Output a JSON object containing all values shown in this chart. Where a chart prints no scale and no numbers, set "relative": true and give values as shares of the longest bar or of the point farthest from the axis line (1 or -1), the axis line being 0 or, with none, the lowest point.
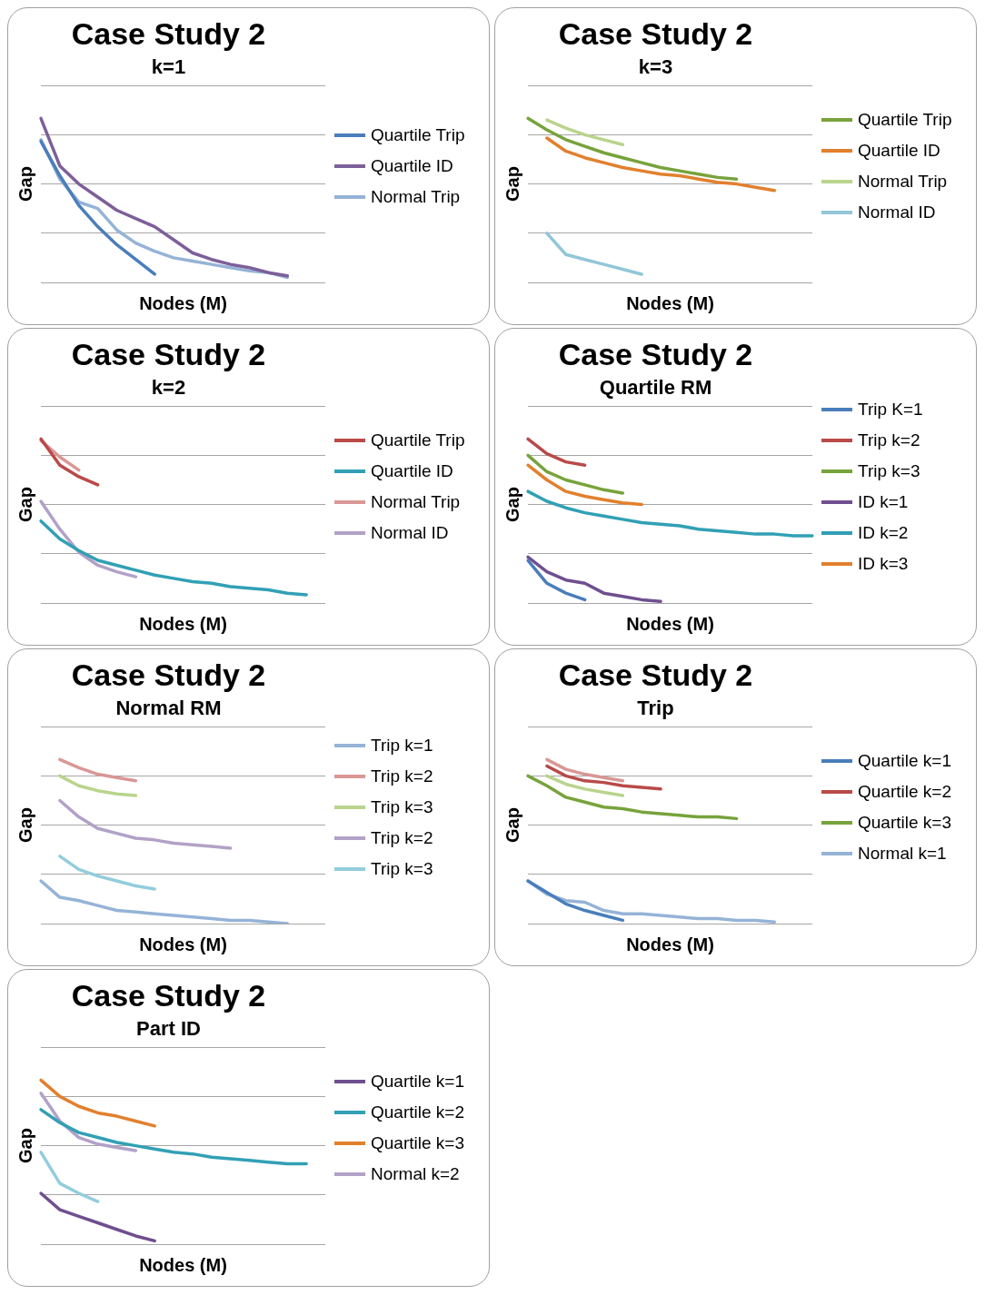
{
  "chart_data": [
    {
      "type": "line",
      "title": "Case Study 2",
      "subtitle": "k=1",
      "xlabel": "Nodes (M)",
      "ylabel": "Gap",
      "relative": true,
      "grid": "y",
      "legend": "right",
      "categories": [
        null,
        null,
        null,
        null,
        null,
        null,
        null,
        null,
        null,
        null,
        null,
        null,
        null,
        null,
        null,
        null
      ],
      "series": [
        {
          "name": "Quartile Trip",
          "color": "#4a7ebb",
          "values": [
            0.86,
            0.65,
            0.47,
            0.34,
            0.23,
            0.14,
            0.05,
            null,
            null,
            null,
            null,
            null,
            null,
            null,
            null,
            null
          ]
        },
        {
          "name": "Quartile ID",
          "color": "#7d5f9a",
          "values": [
            1.0,
            0.71,
            0.6,
            0.52,
            0.44,
            0.39,
            0.34,
            0.26,
            0.18,
            0.14,
            0.11,
            0.09,
            0.06,
            0.04,
            null,
            null
          ]
        },
        {
          "name": "Normal Trip",
          "color": "#95b3d7",
          "values": [
            0.87,
            0.63,
            0.49,
            0.45,
            0.32,
            0.24,
            0.19,
            0.15,
            0.13,
            0.11,
            0.09,
            0.07,
            0.06,
            0.03,
            null,
            null
          ]
        }
      ]
    },
    {
      "type": "line",
      "title": "Case Study 2",
      "subtitle": "k=3",
      "xlabel": "Nodes (M)",
      "ylabel": "Gap",
      "relative": true,
      "grid": "y",
      "legend": "right",
      "categories": [
        null,
        null,
        null,
        null,
        null,
        null,
        null,
        null,
        null,
        null,
        null,
        null,
        null,
        null,
        null,
        null
      ],
      "series": [
        {
          "name": "Quartile Trip",
          "color": "#77a33b",
          "values": [
            1.0,
            0.93,
            0.87,
            0.83,
            0.79,
            0.76,
            0.73,
            0.7,
            0.68,
            0.66,
            0.64,
            0.63,
            null,
            null,
            null,
            null
          ]
        },
        {
          "name": "Quartile ID",
          "color": "#e2802e",
          "values": [
            null,
            0.88,
            0.8,
            0.76,
            0.73,
            0.7,
            0.68,
            0.66,
            0.65,
            0.63,
            0.61,
            0.6,
            0.58,
            0.56,
            null,
            null
          ]
        },
        {
          "name": "Normal Trip",
          "color": "#b9d48c",
          "values": [
            null,
            0.99,
            0.94,
            0.9,
            0.87,
            0.84,
            null,
            null,
            null,
            null,
            null,
            null,
            null,
            null,
            null,
            null
          ]
        },
        {
          "name": "Normal ID",
          "color": "#92c6d8",
          "values": [
            null,
            0.3,
            0.17,
            0.14,
            0.11,
            0.08,
            0.05,
            null,
            null,
            null,
            null,
            null,
            null,
            null,
            null,
            null
          ]
        }
      ]
    },
    {
      "type": "line",
      "title": "Case Study 2",
      "subtitle": "k=2",
      "xlabel": "Nodes (M)",
      "ylabel": "Gap",
      "relative": true,
      "grid": "y",
      "legend": "right",
      "categories": [
        null,
        null,
        null,
        null,
        null,
        null,
        null,
        null,
        null,
        null,
        null,
        null,
        null,
        null,
        null,
        null
      ],
      "series": [
        {
          "name": "Quartile Trip",
          "color": "#b94a48",
          "values": [
            1.0,
            0.84,
            0.77,
            0.72,
            null,
            null,
            null,
            null,
            null,
            null,
            null,
            null,
            null,
            null,
            null,
            null
          ]
        },
        {
          "name": "Quartile ID",
          "color": "#31a0b5",
          "values": [
            0.5,
            0.39,
            0.32,
            0.26,
            0.23,
            0.2,
            0.17,
            0.15,
            0.13,
            0.12,
            0.1,
            0.09,
            0.08,
            0.06,
            0.05,
            null
          ]
        },
        {
          "name": "Normal Trip",
          "color": "#d99795",
          "values": [
            0.99,
            0.89,
            0.81,
            null,
            null,
            null,
            null,
            null,
            null,
            null,
            null,
            null,
            null,
            null,
            null,
            null
          ]
        },
        {
          "name": "Normal ID",
          "color": "#b2a1c7",
          "values": [
            0.62,
            0.45,
            0.31,
            0.23,
            0.19,
            0.16,
            null,
            null,
            null,
            null,
            null,
            null,
            null,
            null,
            null,
            null
          ]
        }
      ]
    },
    {
      "type": "line",
      "title": "Case Study 2",
      "subtitle": "Quartile RM",
      "xlabel": "Nodes (M)",
      "ylabel": "Gap",
      "relative": true,
      "grid": "y",
      "legend": "right",
      "categories": [
        null,
        null,
        null,
        null,
        null,
        null,
        null,
        null,
        null,
        null,
        null,
        null,
        null,
        null,
        null,
        null
      ],
      "series": [
        {
          "name": "Trip K=1",
          "color": "#4a7ebb",
          "values": [
            0.26,
            0.12,
            0.06,
            0.02,
            null,
            null,
            null,
            null,
            null,
            null,
            null,
            null,
            null,
            null,
            null,
            null
          ]
        },
        {
          "name": "Trip k=2",
          "color": "#b94a48",
          "values": [
            1.0,
            0.91,
            0.86,
            0.84,
            null,
            null,
            null,
            null,
            null,
            null,
            null,
            null,
            null,
            null,
            null,
            null
          ]
        },
        {
          "name": "Trip k=3",
          "color": "#77a33b",
          "values": [
            0.9,
            0.8,
            0.75,
            0.72,
            0.69,
            0.67,
            null,
            null,
            null,
            null,
            null,
            null,
            null,
            null,
            null,
            null
          ]
        },
        {
          "name": "ID k=1",
          "color": "#6f4f8f",
          "values": [
            0.28,
            0.19,
            0.14,
            0.12,
            0.06,
            0.04,
            0.02,
            0.01,
            null,
            null,
            null,
            null,
            null,
            null,
            null,
            null
          ]
        },
        {
          "name": "ID k=2",
          "color": "#31a0b5",
          "values": [
            0.68,
            0.62,
            0.58,
            0.55,
            0.53,
            0.51,
            0.49,
            0.48,
            0.47,
            0.45,
            0.44,
            0.43,
            0.42,
            0.42,
            0.41,
            0.41
          ]
        },
        {
          "name": "ID k=3",
          "color": "#e2802e",
          "values": [
            0.84,
            0.75,
            0.68,
            0.65,
            0.63,
            0.61,
            0.6,
            null,
            null,
            null,
            null,
            null,
            null,
            null,
            null,
            null
          ]
        }
      ]
    },
    {
      "type": "line",
      "title": "Case Study 2",
      "subtitle": "Normal RM",
      "xlabel": "Nodes (M)",
      "ylabel": "Gap",
      "relative": true,
      "grid": "y",
      "legend": "right",
      "categories": [
        null,
        null,
        null,
        null,
        null,
        null,
        null,
        null,
        null,
        null,
        null,
        null,
        null,
        null,
        null,
        null
      ],
      "series": [
        {
          "name": "Trip k=1",
          "color": "#95b3d7",
          "values": [
            0.26,
            0.16,
            0.14,
            0.11,
            0.08,
            0.07,
            0.06,
            0.05,
            0.04,
            0.03,
            0.02,
            0.02,
            0.01,
            0.0,
            null,
            null
          ]
        },
        {
          "name": "Trip k=2",
          "color": "#d99795",
          "values": [
            null,
            1.0,
            0.95,
            0.91,
            0.89,
            0.87,
            null,
            null,
            null,
            null,
            null,
            null,
            null,
            null,
            null,
            null
          ]
        },
        {
          "name": "Trip k=3",
          "color": "#b9d48c",
          "values": [
            null,
            0.9,
            0.84,
            0.81,
            0.79,
            0.78,
            null,
            null,
            null,
            null,
            null,
            null,
            null,
            null,
            null,
            null
          ]
        },
        {
          "name": "Trip k=2",
          "color": "#b2a1c7",
          "values": [
            null,
            0.75,
            0.65,
            0.58,
            0.55,
            0.52,
            0.51,
            0.49,
            0.48,
            0.47,
            0.46,
            null,
            null,
            null,
            null,
            null
          ]
        },
        {
          "name": "Trip k=3",
          "color": "#92cddc",
          "values": [
            null,
            0.41,
            0.33,
            0.29,
            0.26,
            0.23,
            0.21,
            null,
            null,
            null,
            null,
            null,
            null,
            null,
            null,
            null
          ]
        }
      ]
    },
    {
      "type": "line",
      "title": "Case Study 2",
      "subtitle": "Trip",
      "xlabel": "Nodes (M)",
      "ylabel": "Gap",
      "relative": true,
      "grid": "y",
      "legend": "right",
      "categories": [
        null,
        null,
        null,
        null,
        null,
        null,
        null,
        null,
        null,
        null,
        null,
        null,
        null,
        null,
        null,
        null
      ],
      "series": [
        {
          "name": "Quartile k=1",
          "color": "#4a7ebb",
          "values": [
            0.26,
            0.19,
            0.12,
            0.08,
            0.05,
            0.02,
            null,
            null,
            null,
            null,
            null,
            null,
            null,
            null,
            null,
            null
          ]
        },
        {
          "name": "Quartile k=2",
          "color": "#b94a48",
          "values": [
            null,
            0.96,
            0.9,
            0.87,
            0.86,
            0.84,
            0.83,
            0.82,
            null,
            null,
            null,
            null,
            null,
            null,
            null,
            null
          ]
        },
        {
          "name": "Quartile k=3",
          "color": "#77a33b",
          "values": [
            0.9,
            0.84,
            0.77,
            0.74,
            0.71,
            0.7,
            0.68,
            0.67,
            0.66,
            0.65,
            0.65,
            0.64,
            null,
            null,
            null,
            null
          ]
        },
        {
          "name": "Normal k=1",
          "color": "#95b3d7",
          "values": [
            0.26,
            0.18,
            0.14,
            0.13,
            0.08,
            0.06,
            0.06,
            0.05,
            0.04,
            0.03,
            0.03,
            0.02,
            0.02,
            0.01,
            null,
            null
          ]
        },
        {
          "color": "#d99795",
          "values": [
            null,
            1.0,
            0.94,
            0.91,
            0.89,
            0.87,
            null,
            null,
            null,
            null,
            null,
            null,
            null,
            null,
            null,
            null
          ]
        },
        {
          "color": "#b9d48c",
          "values": [
            null,
            0.9,
            0.85,
            0.82,
            0.8,
            0.78,
            null,
            null,
            null,
            null,
            null,
            null,
            null,
            null,
            null,
            null
          ]
        }
      ]
    },
    {
      "type": "line",
      "title": "Case Study 2",
      "subtitle": "Part ID",
      "xlabel": "Nodes (M)",
      "ylabel": "Gap",
      "relative": true,
      "grid": "y",
      "legend": "right",
      "categories": [
        null,
        null,
        null,
        null,
        null,
        null,
        null,
        null,
        null,
        null,
        null,
        null,
        null,
        null,
        null,
        null
      ],
      "series": [
        {
          "name": "Quartile k=1",
          "color": "#6f4f8f",
          "values": [
            0.31,
            0.21,
            0.17,
            0.13,
            0.09,
            0.05,
            0.02,
            null,
            null,
            null,
            null,
            null,
            null,
            null,
            null,
            null
          ]
        },
        {
          "name": "Quartile k=2",
          "color": "#31a0b5",
          "values": [
            0.82,
            0.74,
            0.68,
            0.65,
            0.62,
            0.6,
            0.58,
            0.56,
            0.55,
            0.53,
            0.52,
            0.51,
            0.5,
            0.49,
            0.49,
            null
          ]
        },
        {
          "name": "Quartile k=3",
          "color": "#e2802e",
          "values": [
            1.0,
            0.9,
            0.84,
            0.8,
            0.78,
            0.75,
            0.72,
            null,
            null,
            null,
            null,
            null,
            null,
            null,
            null,
            null
          ]
        },
        {
          "name": "Normal k=2",
          "color": "#b2a1c7",
          "values": [
            0.92,
            0.75,
            0.65,
            0.61,
            0.59,
            0.57,
            null,
            null,
            null,
            null,
            null,
            null,
            null,
            null,
            null,
            null
          ]
        },
        {
          "color": "#92cddc",
          "values": [
            0.56,
            0.37,
            0.31,
            0.26,
            null,
            null,
            null,
            null,
            null,
            null,
            null,
            null,
            null,
            null,
            null,
            null
          ]
        }
      ]
    }
  ]
}
